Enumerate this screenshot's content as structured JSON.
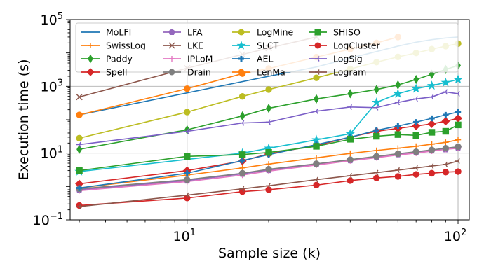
{
  "chart_data": {
    "type": "line",
    "xscale": "log",
    "yscale": "log",
    "xlabel": "Sample size (k)",
    "ylabel": "Execution time (s)",
    "xlim": [
      3.7,
      110
    ],
    "ylim": [
      0.1,
      100000
    ],
    "xticks": [
      {
        "value": 10,
        "base": "10",
        "exp": "1"
      },
      {
        "value": 100,
        "base": "10",
        "exp": "2"
      }
    ],
    "yticks": [
      {
        "value": 0.1,
        "base": "10",
        "exp": "−1"
      },
      {
        "value": 10,
        "base": "10",
        "exp": "1"
      },
      {
        "value": 1000,
        "base": "10",
        "exp": "3"
      },
      {
        "value": 100000,
        "base": "10",
        "exp": "5"
      }
    ],
    "grid": true,
    "legend_position": "top-left",
    "series": [
      {
        "name": "MoLFI",
        "color": "#1f77b4",
        "marker": "none",
        "x": [
          4,
          20,
          30,
          40,
          50,
          60,
          70,
          80,
          90,
          100
        ],
        "y": [
          140,
          2000,
          3800,
          7000,
          11000,
          16000,
          21000,
          25000,
          28000,
          30000
        ]
      },
      {
        "name": "SwissLog",
        "color": "#ff7f0e",
        "marker": "plus",
        "x": [
          4,
          10,
          16,
          20,
          30,
          40,
          50,
          60,
          70,
          80,
          90,
          100
        ],
        "y": [
          0.9,
          2.2,
          3.6,
          4.7,
          7.2,
          9.8,
          12,
          14,
          16,
          18.5,
          21,
          25
        ]
      },
      {
        "name": "Paddy",
        "color": "#2ca02c",
        "marker": "thin_diamond",
        "x": [
          4,
          10,
          16,
          20,
          30,
          40,
          50,
          60,
          70,
          80,
          90,
          100
        ],
        "y": [
          13,
          50,
          130,
          220,
          420,
          600,
          800,
          1100,
          1600,
          2300,
          3200,
          4200
        ]
      },
      {
        "name": "Spell",
        "color": "#d62728",
        "marker": "diamond",
        "x": [
          4,
          10,
          16,
          20,
          30,
          40,
          50,
          60,
          70,
          80,
          90,
          100
        ],
        "y": [
          1.2,
          3.0,
          5.8,
          9.5,
          17,
          30,
          45,
          55,
          65,
          75,
          90,
          110
        ]
      },
      {
        "name": "LFA",
        "color": "#9467bd",
        "marker": "pentagon",
        "x": [
          4,
          10,
          16,
          20,
          30,
          40,
          50,
          60,
          70,
          80,
          90,
          100
        ],
        "y": [
          0.8,
          1.5,
          2.4,
          3.1,
          4.6,
          6.1,
          7.6,
          9.2,
          10.5,
          12,
          13,
          14.5
        ]
      },
      {
        "name": "LKE",
        "color": "#8c564b",
        "marker": "x",
        "x": [
          4,
          10,
          16,
          20,
          30
        ],
        "y": [
          480,
          3500,
          9000,
          14000,
          30000
        ]
      },
      {
        "name": "IPLoM",
        "color": "#e377c2",
        "marker": "plus",
        "x": [
          4,
          10,
          16,
          20,
          30,
          40,
          50,
          60,
          70,
          80,
          90,
          100
        ],
        "y": [
          0.75,
          1.4,
          2.2,
          2.9,
          4.4,
          5.9,
          7.3,
          8.8,
          10,
          11.5,
          13,
          14
        ]
      },
      {
        "name": "Drain",
        "color": "#7f7f7f",
        "marker": "circle",
        "x": [
          4,
          10,
          16,
          20,
          30,
          40,
          50,
          60,
          70,
          80,
          90,
          100
        ],
        "y": [
          0.85,
          1.6,
          2.5,
          3.3,
          4.8,
          6.4,
          8.0,
          9.6,
          11,
          12.5,
          14,
          15.5
        ]
      },
      {
        "name": "LogMine",
        "color": "#bcbd22",
        "marker": "circle",
        "x": [
          4,
          10,
          16,
          20,
          30,
          40,
          50,
          60,
          70,
          80,
          90,
          100
        ],
        "y": [
          28,
          170,
          500,
          800,
          1800,
          3300,
          5300,
          7600,
          10000,
          13000,
          16000,
          19000
        ]
      },
      {
        "name": "SLCT",
        "color": "#17becf",
        "marker": "star",
        "x": [
          4,
          16,
          20,
          30,
          40,
          50,
          60,
          70,
          80,
          90,
          100
        ],
        "y": [
          2.8,
          10,
          14,
          25,
          38,
          330,
          600,
          850,
          1050,
          1300,
          1600
        ]
      },
      {
        "name": "AEL",
        "color": "#1f77b4",
        "marker": "plus_filled",
        "x": [
          4,
          10,
          16,
          20,
          30,
          40,
          50,
          60,
          70,
          80,
          90,
          100
        ],
        "y": [
          0.9,
          2.5,
          6,
          9,
          18,
          30,
          48,
          65,
          85,
          110,
          140,
          170
        ]
      },
      {
        "name": "LenMa",
        "color": "#ff7f0e",
        "marker": "circle",
        "x": [
          4,
          10,
          16,
          20,
          30,
          40,
          50,
          60
        ],
        "y": [
          140,
          850,
          2400,
          3400,
          7500,
          13000,
          20000,
          30000
        ]
      },
      {
        "name": "SHISO",
        "color": "#2ca02c",
        "marker": "square",
        "x": [
          4,
          10,
          16,
          20,
          30,
          40,
          50,
          60,
          70,
          80,
          90,
          100
        ],
        "y": [
          3.0,
          8.0,
          9.0,
          10.5,
          16,
          26,
          32,
          36,
          34,
          42,
          45,
          70
        ]
      },
      {
        "name": "LogCluster",
        "color": "#d62728",
        "marker": "circle",
        "x": [
          4,
          10,
          16,
          20,
          30,
          40,
          50,
          60,
          70,
          80,
          90,
          100
        ],
        "y": [
          0.27,
          0.45,
          0.7,
          0.8,
          1.1,
          1.5,
          1.8,
          2.0,
          2.3,
          2.5,
          2.7,
          2.8
        ]
      },
      {
        "name": "LogSig",
        "color": "#7b5fc7",
        "marker": "tri_left",
        "x": [
          4,
          10,
          16,
          20,
          30,
          40,
          50,
          60,
          70,
          80,
          90,
          100
        ],
        "y": [
          18,
          45,
          80,
          85,
          180,
          240,
          230,
          330,
          420,
          480,
          680,
          600
        ]
      },
      {
        "name": "Logram",
        "color": "#8c564b",
        "marker": "tri_left",
        "x": [
          4,
          10,
          16,
          20,
          30,
          40,
          50,
          60,
          70,
          80,
          90,
          100
        ],
        "y": [
          0.25,
          0.55,
          0.85,
          1.05,
          1.6,
          2.1,
          2.6,
          3.1,
          3.6,
          4.1,
          4.6,
          5.8
        ]
      }
    ]
  }
}
